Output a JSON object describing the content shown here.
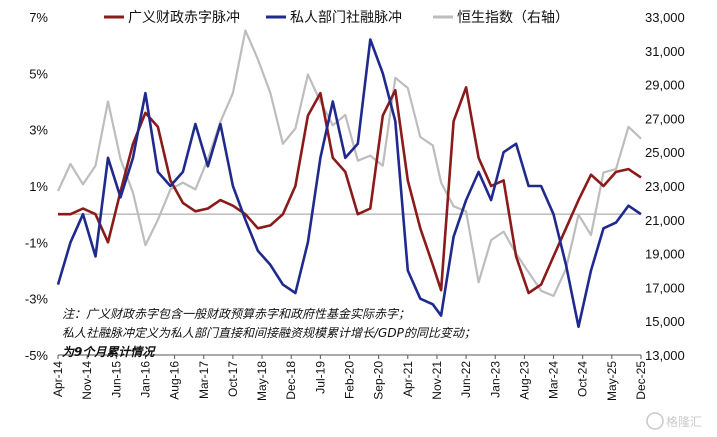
{
  "chart_data": {
    "type": "line",
    "title": "",
    "colors": {
      "fiscal": "#8b1a1a",
      "private": "#1f2a8c",
      "hsi": "#bdbdbd",
      "zero": "#9a9a9a"
    },
    "legend": [
      "广义财政赤字脉冲",
      "私人部门社融脉冲",
      "恒生指数（右轴）"
    ],
    "legend_position": "top",
    "y_left": {
      "ylim": [
        -5,
        7
      ],
      "ticks": [
        "-5%",
        "-3%",
        "-1%",
        "1%",
        "3%",
        "5%",
        "7%"
      ],
      "tick_values": [
        -5,
        -3,
        -1,
        1,
        3,
        5,
        7
      ]
    },
    "y_right": {
      "ylim": [
        13000,
        33000
      ],
      "ticks": [
        "13,000",
        "15,000",
        "17,000",
        "19,000",
        "21,000",
        "23,000",
        "25,000",
        "27,000",
        "29,000",
        "31,000",
        "33,000"
      ],
      "tick_values": [
        13000,
        15000,
        17000,
        19000,
        21000,
        23000,
        25000,
        27000,
        29000,
        31000,
        33000
      ]
    },
    "x_ticks": [
      "Apr-14",
      "Nov-14",
      "Jun-15",
      "Jan-16",
      "Aug-16",
      "Mar-17",
      "Oct-17",
      "May-18",
      "Dec-18",
      "Jul-19",
      "Feb-20",
      "Sep-20",
      "Apr-21",
      "Nov-21",
      "Jun-22",
      "Jan-23",
      "Aug-23",
      "Mar-24",
      "Oct-24",
      "May-25",
      "Dec-25"
    ],
    "x_start": "2014-04",
    "x_end": "2025-12",
    "series": [
      {
        "name": "广义财政赤字脉冲",
        "axis": "left",
        "x": [
          "2014-04",
          "2014-07",
          "2014-10",
          "2015-01",
          "2015-04",
          "2015-07",
          "2015-10",
          "2016-01",
          "2016-04",
          "2016-07",
          "2016-10",
          "2017-01",
          "2017-04",
          "2017-07",
          "2017-10",
          "2018-01",
          "2018-04",
          "2018-07",
          "2018-10",
          "2019-01",
          "2019-04",
          "2019-07",
          "2019-10",
          "2020-01",
          "2020-04",
          "2020-07",
          "2020-10",
          "2021-01",
          "2021-04",
          "2021-07",
          "2021-10",
          "2021-12",
          "2022-03",
          "2022-06",
          "2022-09",
          "2022-12",
          "2023-03",
          "2023-06",
          "2023-09",
          "2023-12",
          "2024-03",
          "2024-06",
          "2024-09",
          "2024-12",
          "2025-03",
          "2025-06",
          "2025-09",
          "2025-12"
        ],
        "values": [
          0.0,
          0.0,
          0.2,
          0.0,
          -1.0,
          0.8,
          2.5,
          3.6,
          3.1,
          1.2,
          0.4,
          0.1,
          0.2,
          0.5,
          0.3,
          0.0,
          -0.5,
          -0.4,
          0.0,
          1.0,
          3.5,
          4.3,
          2.0,
          1.5,
          0.0,
          0.2,
          3.5,
          4.4,
          1.2,
          -0.5,
          -1.8,
          -2.7,
          3.3,
          4.5,
          2.0,
          1.0,
          1.2,
          -1.5,
          -2.8,
          -2.5,
          -1.5,
          -0.5,
          0.5,
          1.4,
          1.0,
          1.5,
          1.6,
          1.3
        ]
      },
      {
        "name": "私人部门社融脉冲",
        "axis": "left",
        "x": [
          "2014-04",
          "2014-07",
          "2014-10",
          "2015-01",
          "2015-04",
          "2015-07",
          "2015-10",
          "2016-01",
          "2016-04",
          "2016-07",
          "2016-10",
          "2017-01",
          "2017-04",
          "2017-07",
          "2017-10",
          "2018-01",
          "2018-04",
          "2018-07",
          "2018-10",
          "2019-01",
          "2019-04",
          "2019-07",
          "2019-10",
          "2020-01",
          "2020-04",
          "2020-07",
          "2020-10",
          "2021-01",
          "2021-04",
          "2021-07",
          "2021-10",
          "2021-12",
          "2022-03",
          "2022-06",
          "2022-09",
          "2022-12",
          "2023-03",
          "2023-06",
          "2023-09",
          "2023-12",
          "2024-03",
          "2024-06",
          "2024-09",
          "2024-12",
          "2025-03",
          "2025-06",
          "2025-09",
          "2025-12"
        ],
        "values": [
          -2.5,
          -1.0,
          0.0,
          -1.5,
          2.0,
          0.6,
          2.0,
          4.3,
          1.5,
          1.0,
          1.5,
          3.2,
          1.7,
          3.2,
          1.0,
          -0.2,
          -1.3,
          -1.8,
          -2.5,
          -2.8,
          -1.0,
          2.0,
          4.0,
          2.0,
          2.5,
          6.2,
          5.0,
          3.3,
          -2.0,
          -3.0,
          -3.2,
          -3.6,
          -0.8,
          0.5,
          1.5,
          0.5,
          2.2,
          2.5,
          1.0,
          1.0,
          0.0,
          -1.8,
          -4.0,
          -2.0,
          -0.5,
          -0.3,
          0.3,
          0.0
        ]
      },
      {
        "name": "恒生指数（右轴）",
        "axis": "right",
        "x": [
          "2014-04",
          "2014-07",
          "2014-10",
          "2015-01",
          "2015-04",
          "2015-07",
          "2015-10",
          "2016-01",
          "2016-04",
          "2016-07",
          "2016-10",
          "2017-01",
          "2017-04",
          "2017-07",
          "2017-10",
          "2018-01",
          "2018-04",
          "2018-07",
          "2018-10",
          "2019-01",
          "2019-04",
          "2019-07",
          "2019-10",
          "2020-01",
          "2020-04",
          "2020-07",
          "2020-10",
          "2021-01",
          "2021-04",
          "2021-07",
          "2021-10",
          "2021-12",
          "2022-03",
          "2022-06",
          "2022-09",
          "2022-12",
          "2023-03",
          "2023-06",
          "2023-09",
          "2023-12",
          "2024-03",
          "2024-06",
          "2024-09",
          "2024-12",
          "2025-03",
          "2025-06",
          "2025-09",
          "2025-12"
        ],
        "values": [
          22700,
          24300,
          23100,
          24200,
          28000,
          24600,
          22600,
          19500,
          21000,
          22800,
          23200,
          22800,
          24600,
          26800,
          28500,
          32200,
          30500,
          28500,
          25500,
          26400,
          29600,
          28000,
          26600,
          27200,
          24500,
          24800,
          24200,
          29400,
          28800,
          25900,
          25400,
          23200,
          21800,
          21500,
          17300,
          19800,
          20300,
          19000,
          17900,
          16800,
          16500,
          18100,
          21300,
          20100,
          23800,
          24000,
          26500,
          25800
        ]
      }
    ],
    "notes": [
      "注：广义财政赤字包含一般财政预算赤字和政府性基金实际赤字；",
      "私人社融脉冲定义为私人部门直接和间接融资规模累计增长/GDP的同比变动；",
      "为9个月累计情况"
    ],
    "watermark": "格隆汇"
  }
}
